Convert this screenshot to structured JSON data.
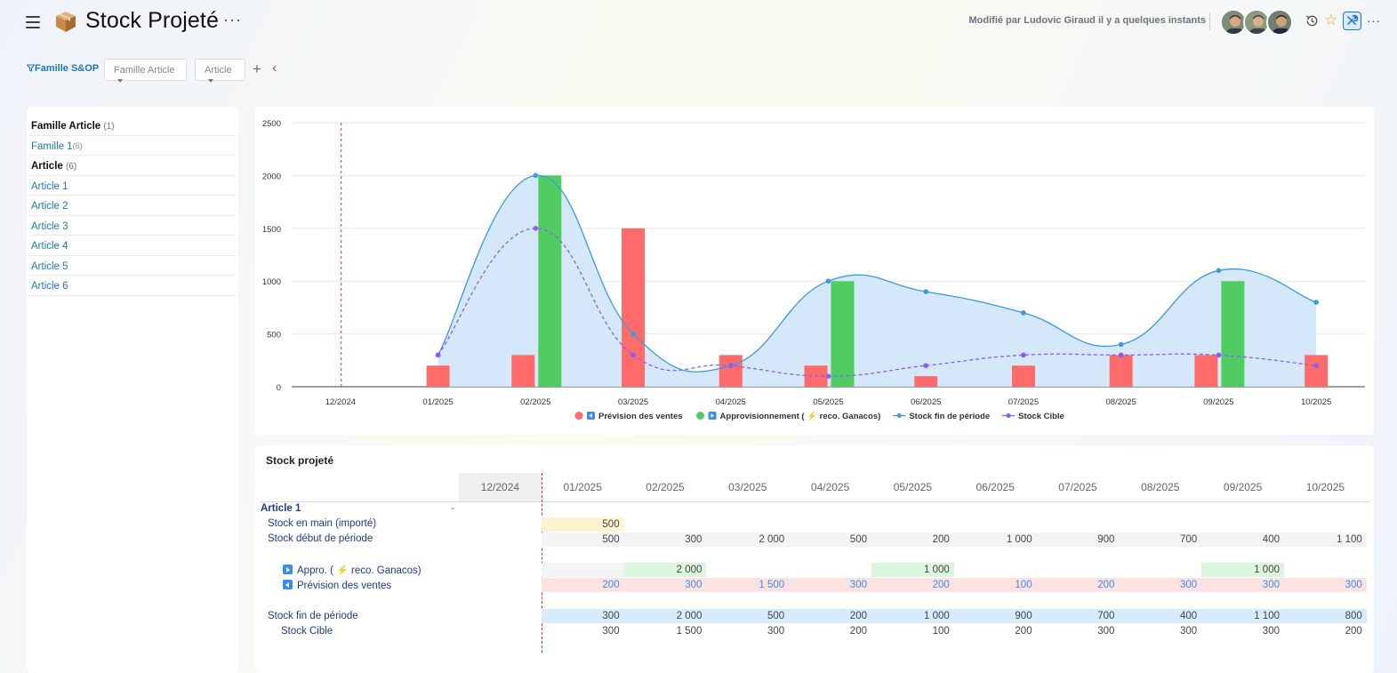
{
  "header": {
    "title": "Stock Projeté",
    "title_more": "···",
    "modified": "Modifié par Ludovic Giraud il y a quelques instants",
    "more": "···",
    "icons": [
      "menu-icon",
      "box-icon",
      "history-icon",
      "star-icon",
      "tools-icon"
    ]
  },
  "filters": {
    "label": "Famille S&OP",
    "family_dropdown": "Famille Article",
    "article_dropdown": "Article",
    "add": "+",
    "collapse": "‹"
  },
  "sidebar": {
    "family_header": "Famille Article",
    "family_count": "(1)",
    "family_item": "Famille 1",
    "family_item_count": "(6)",
    "article_header": "Article",
    "article_count": "(6)",
    "articles": [
      "Article 1",
      "Article 2",
      "Article 3",
      "Article 4",
      "Article 5",
      "Article 6"
    ]
  },
  "chart_data": {
    "type": "bar",
    "categories": [
      "12/2024",
      "01/2025",
      "02/2025",
      "03/2025",
      "04/2025",
      "05/2025",
      "06/2025",
      "07/2025",
      "08/2025",
      "09/2025",
      "10/2025"
    ],
    "ylim": [
      0,
      2500
    ],
    "yticks": [
      0,
      500,
      1000,
      1500,
      2000,
      2500
    ],
    "grid": true,
    "legend_position": "bottom",
    "series": [
      {
        "name": "Prévision des ventes",
        "kind": "bar",
        "color": "#ff6b6b",
        "values": [
          0,
          200,
          300,
          1500,
          300,
          200,
          100,
          200,
          300,
          300,
          300
        ]
      },
      {
        "name": "Approvisionnement ( reco. Ganacos)",
        "kind": "bar",
        "color": "#51cc63",
        "values": [
          0,
          0,
          2000,
          0,
          0,
          1000,
          0,
          0,
          0,
          1000,
          0
        ]
      },
      {
        "name": "Stock fin de période",
        "kind": "area",
        "color": "#3a9be0",
        "values": [
          null,
          300,
          2000,
          500,
          200,
          1000,
          900,
          700,
          400,
          1100,
          800
        ]
      },
      {
        "name": "Stock Cible",
        "kind": "dashed-line",
        "color": "#8b5cf6",
        "values": [
          null,
          300,
          1500,
          300,
          200,
          100,
          200,
          300,
          300,
          300,
          200
        ]
      }
    ]
  },
  "table": {
    "title": "Stock projeté",
    "columns": [
      "12/2024",
      "01/2025",
      "02/2025",
      "03/2025",
      "04/2025",
      "05/2025",
      "06/2025",
      "07/2025",
      "08/2025",
      "09/2025",
      "10/2025"
    ],
    "article": "Article 1",
    "article_marker": "-",
    "rows": {
      "stock_en_main": {
        "label": "Stock en main (importé)",
        "values": [
          "",
          "500",
          "",
          "",
          "",
          "",
          "",
          "",
          "",
          "",
          ""
        ]
      },
      "stock_debut": {
        "label": "Stock début de période",
        "values": [
          "",
          "500",
          "300",
          "2 000",
          "500",
          "200",
          "1 000",
          "900",
          "700",
          "400",
          "1 100"
        ]
      },
      "appro": {
        "label_before": "Appro. (",
        "label_after": "reco. Ganacos)",
        "values": [
          "",
          "",
          "2 000",
          "",
          "",
          "1 000",
          "",
          "",
          "",
          "1 000",
          ""
        ]
      },
      "prevision": {
        "label": "Prévision des ventes",
        "values": [
          "",
          "200",
          "300",
          "1 500",
          "300",
          "200",
          "100",
          "200",
          "300",
          "300",
          "300"
        ]
      },
      "stock_fin": {
        "label": "Stock fin de période",
        "values": [
          "",
          "300",
          "2 000",
          "500",
          "200",
          "1 000",
          "900",
          "700",
          "400",
          "1 100",
          "800"
        ]
      },
      "stock_cible": {
        "label": "Stock Cible",
        "values": [
          "",
          "300",
          "1 500",
          "300",
          "200",
          "100",
          "200",
          "300",
          "300",
          "300",
          "200"
        ]
      }
    }
  }
}
